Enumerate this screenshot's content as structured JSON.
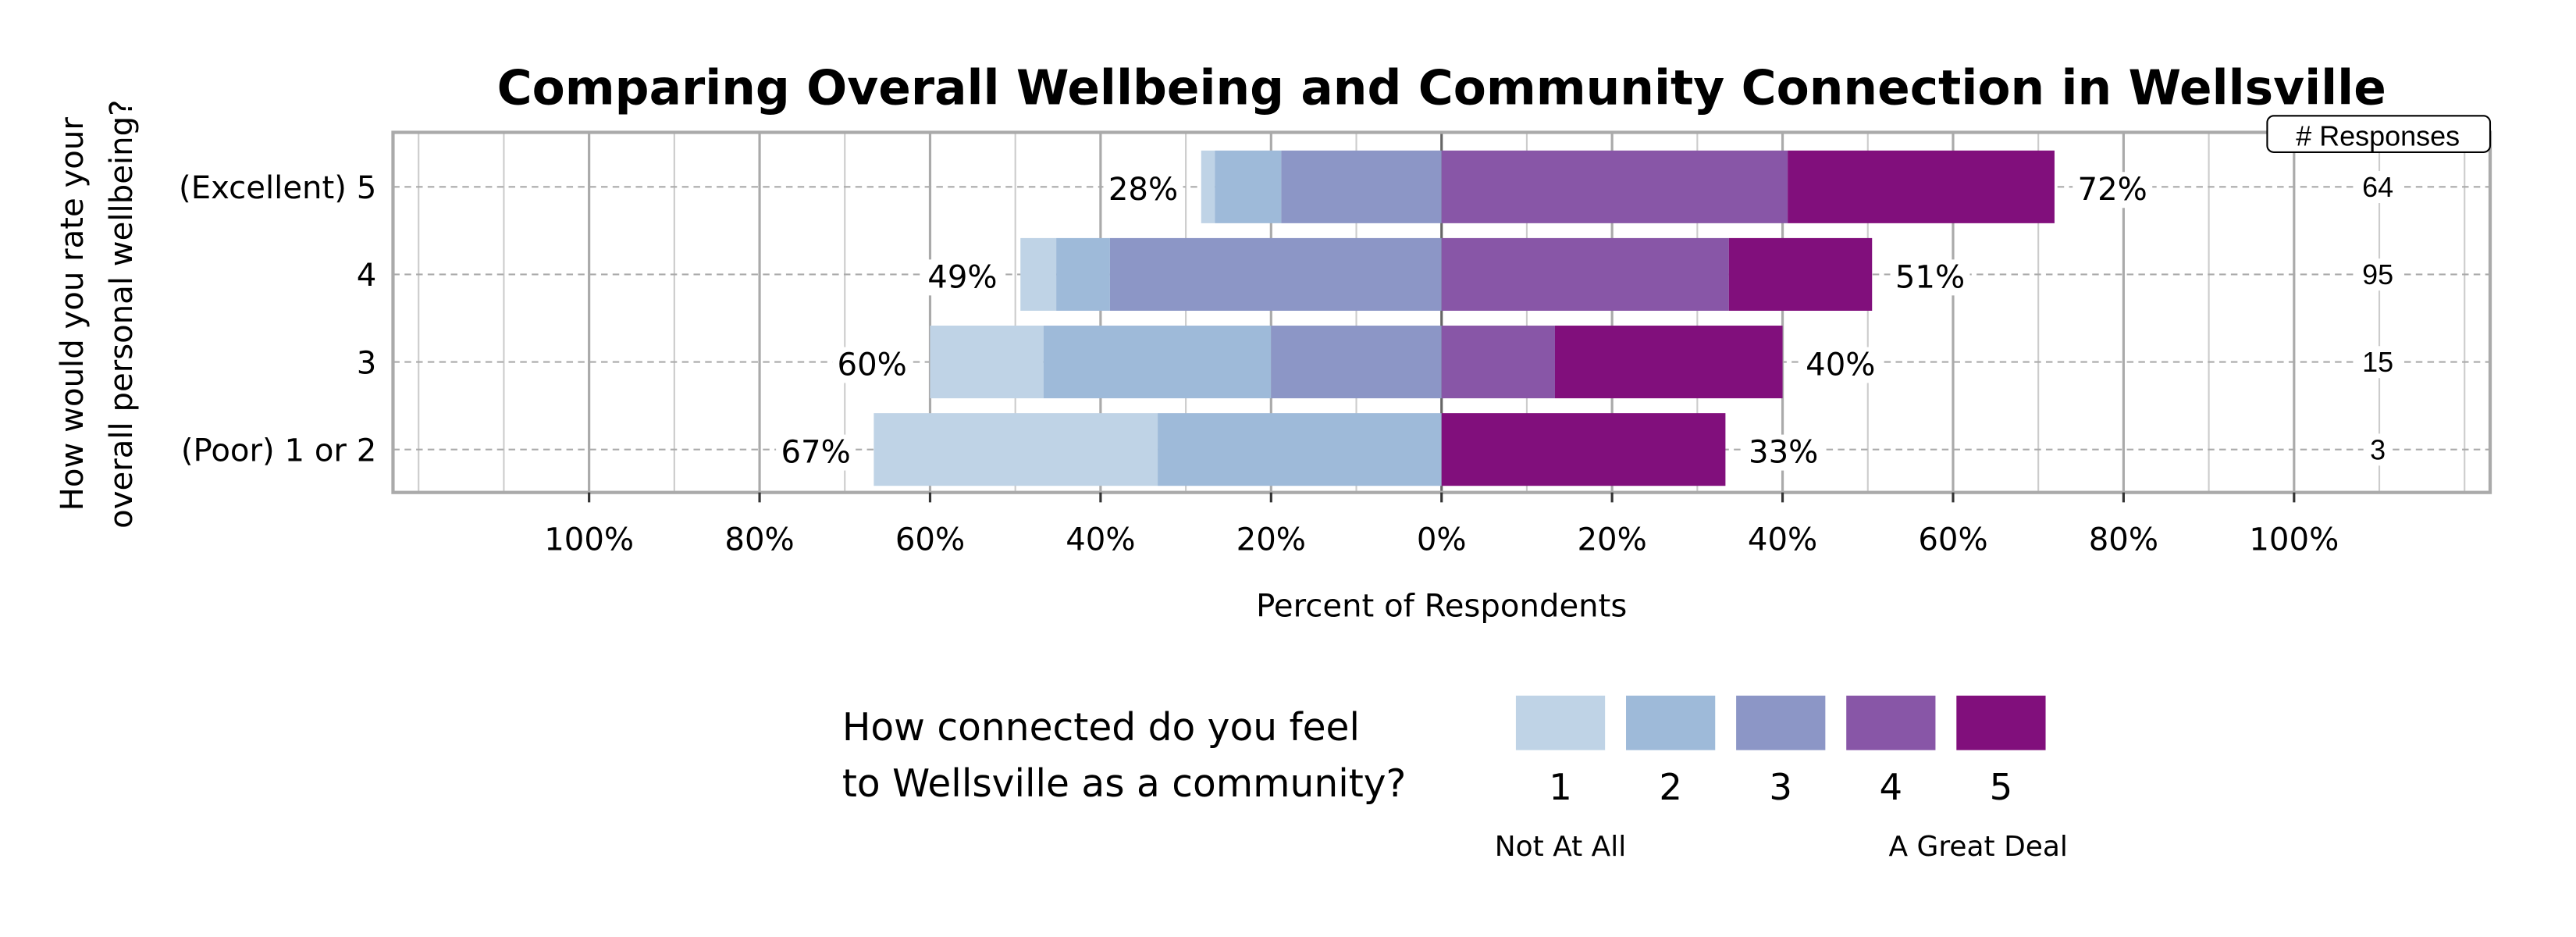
{
  "chart_data": {
    "type": "bar",
    "orientation": "horizontal-diverging-stacked",
    "title": "Comparing Overall Wellbeing and Community Connection in Wellsville",
    "xlabel": "Percent of Respondents",
    "ylabel": "How would you rate your overall personal wellbeing?",
    "xlim": [
      -123,
      123
    ],
    "xticks": [
      -100,
      -80,
      -60,
      -40,
      -20,
      0,
      20,
      40,
      60,
      80,
      100
    ],
    "xtick_labels": [
      "100%",
      "80%",
      "60%",
      "40%",
      "20%",
      "0%",
      "20%",
      "40%",
      "60%",
      "80%",
      "100%"
    ],
    "grid": true,
    "categories": [
      "(Excellent) 5",
      "4",
      "3",
      "(Poor) 1 or 2"
    ],
    "series": [
      {
        "name": "1",
        "color": "#bfd3e6",
        "values": [
          1.6,
          4.2,
          13.3,
          33.3
        ]
      },
      {
        "name": "2",
        "color": "#9ebad9",
        "values": [
          7.8,
          6.3,
          26.7,
          33.3
        ]
      },
      {
        "name": "3",
        "color": "#8c96c6",
        "values": [
          18.8,
          38.9,
          20.0,
          0
        ]
      },
      {
        "name": "4",
        "color": "#8856a7",
        "values": [
          40.6,
          33.7,
          13.3,
          0
        ]
      },
      {
        "name": "5",
        "color": "#810f7c",
        "values": [
          31.3,
          16.8,
          26.7,
          33.3
        ]
      }
    ],
    "negative_totals": [
      "28%",
      "49%",
      "60%",
      "67%"
    ],
    "positive_totals": [
      "72%",
      "51%",
      "40%",
      "33%"
    ],
    "responses_header": "# Responses",
    "responses": [
      "64",
      "95",
      "15",
      "3"
    ],
    "legend": {
      "title_line1": "How connected do you feel",
      "title_line2": "to Wellsville as a community?",
      "low_label": "Not At All",
      "high_label": "A Great Deal",
      "placement": "bottom"
    }
  }
}
